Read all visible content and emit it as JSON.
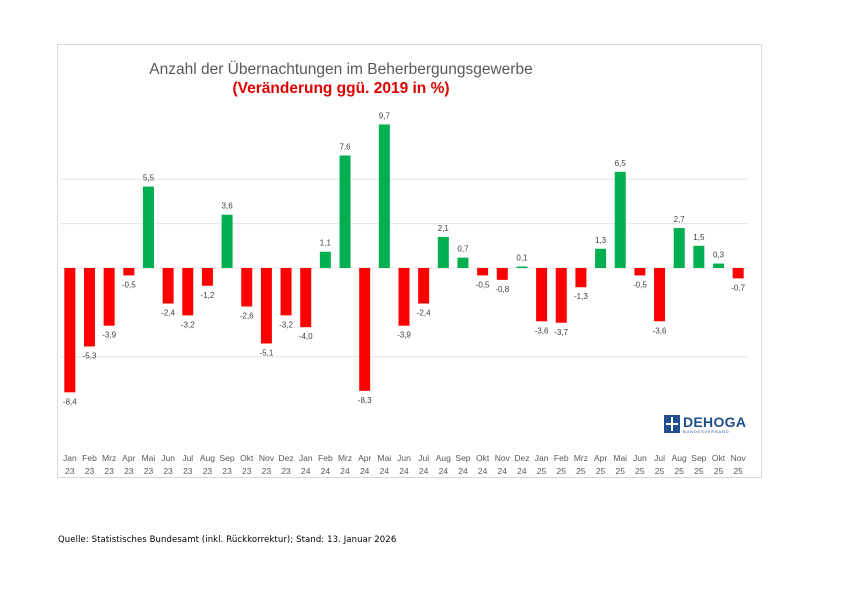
{
  "chart_data": {
    "type": "bar",
    "title": "Anzahl der Übernachtungen im Beherbergungsgewerbe",
    "subtitle": "(Veränderung ggü. 2019 in %)",
    "xlabel": "",
    "ylabel": "",
    "ylim": [
      -10,
      12
    ],
    "gridlines": [
      -6,
      0,
      3,
      6
    ],
    "colors": {
      "positive": "#00b050",
      "negative": "#ff0000",
      "label": "#404040",
      "grid": "#e6e6e6",
      "axis_label": "#595959"
    },
    "categories": [
      {
        "month": "Jan",
        "year": "23"
      },
      {
        "month": "Feb",
        "year": "23"
      },
      {
        "month": "Mrz",
        "year": "23"
      },
      {
        "month": "Apr",
        "year": "23"
      },
      {
        "month": "Mai",
        "year": "23"
      },
      {
        "month": "Jun",
        "year": "23"
      },
      {
        "month": "Jul",
        "year": "23"
      },
      {
        "month": "Aug",
        "year": "23"
      },
      {
        "month": "Sep",
        "year": "23"
      },
      {
        "month": "Okt",
        "year": "23"
      },
      {
        "month": "Nov",
        "year": "23"
      },
      {
        "month": "Dez",
        "year": "23"
      },
      {
        "month": "Jan",
        "year": "24"
      },
      {
        "month": "Feb",
        "year": "24"
      },
      {
        "month": "Mrz",
        "year": "24"
      },
      {
        "month": "Apr",
        "year": "24"
      },
      {
        "month": "Mai",
        "year": "24"
      },
      {
        "month": "Jun",
        "year": "24"
      },
      {
        "month": "Jul",
        "year": "24"
      },
      {
        "month": "Aug",
        "year": "24"
      },
      {
        "month": "Sep",
        "year": "24"
      },
      {
        "month": "Okt",
        "year": "24"
      },
      {
        "month": "Nov",
        "year": "24"
      },
      {
        "month": "Dez",
        "year": "24"
      },
      {
        "month": "Jan",
        "year": "25"
      },
      {
        "month": "Feb",
        "year": "25"
      },
      {
        "month": "Mrz",
        "year": "25"
      },
      {
        "month": "Apr",
        "year": "25"
      },
      {
        "month": "Mai",
        "year": "25"
      },
      {
        "month": "Jun",
        "year": "25"
      },
      {
        "month": "Jul",
        "year": "25"
      },
      {
        "month": "Aug",
        "year": "25"
      },
      {
        "month": "Sep",
        "year": "25"
      },
      {
        "month": "Okt",
        "year": "25"
      },
      {
        "month": "Nov",
        "year": "25"
      }
    ],
    "values": [
      -8.4,
      -5.3,
      -3.9,
      -0.5,
      5.5,
      -2.4,
      -3.2,
      -1.2,
      3.6,
      -2.6,
      -5.1,
      -3.2,
      -4.0,
      1.1,
      7.6,
      -8.3,
      9.7,
      -3.9,
      -2.4,
      2.1,
      0.7,
      -0.5,
      -0.8,
      0.1,
      -3.6,
      -3.7,
      -1.3,
      1.3,
      6.5,
      -0.5,
      -3.6,
      2.7,
      1.5,
      0.3,
      -0.7
    ],
    "data_labels": [
      "-8,4",
      "-5,3",
      "-3,9",
      "-0,5",
      "5,5",
      "-2,4",
      "-3,2",
      "-1,2",
      "3,6",
      "-2,6",
      "-5,1",
      "-3,2",
      "-4,0",
      "1,1",
      "7,6",
      "-8,3",
      "9,7",
      "-3,9",
      "-2,4",
      "2,1",
      "0,7",
      "-0,5",
      "-0,8",
      "0,1",
      "-3,6",
      "-3,7",
      "-1,3",
      "1,3",
      "6,5",
      "-0,5",
      "-3,6",
      "2,7",
      "1,5",
      "0,3",
      "-0,7"
    ]
  },
  "logo": {
    "name": "DEHOGA",
    "subname": "BUNDESVERBAND"
  },
  "source_note": "Quelle: Statistisches Bundesamt (inkl. Rückkorrektur); Stand: 13. Januar 2026"
}
